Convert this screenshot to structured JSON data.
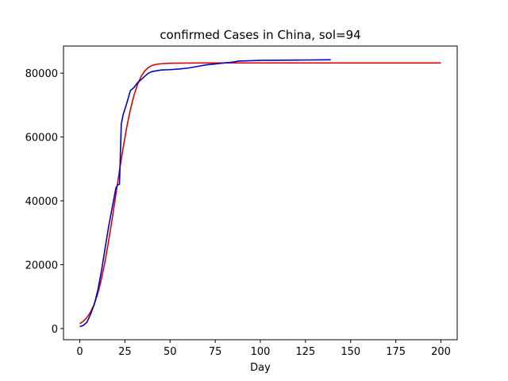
{
  "chart_data": {
    "type": "line",
    "title": "confirmed Cases in China, sol=94",
    "xlabel": "Day",
    "ylabel": "",
    "xlim": [
      -9,
      209
    ],
    "ylim": [
      -3500,
      88500
    ],
    "xticks": [
      0,
      25,
      50,
      75,
      100,
      125,
      150,
      175,
      200
    ],
    "yticks": [
      0,
      20000,
      40000,
      60000,
      80000
    ],
    "grid": false,
    "legend": "none",
    "series": [
      {
        "color": "#dd0000",
        "x": [
          0,
          2,
          4,
          6,
          8,
          10,
          12,
          14,
          16,
          18,
          20,
          22,
          24,
          26,
          28,
          30,
          32,
          34,
          36,
          38,
          40,
          42,
          44,
          46,
          48,
          50,
          55,
          60,
          70,
          80,
          100,
          125,
          150,
          175,
          200
        ],
        "y": [
          1500,
          2300,
          3500,
          5200,
          7600,
          11000,
          15500,
          21000,
          27500,
          34500,
          42000,
          49500,
          56500,
          63000,
          68500,
          73000,
          76500,
          79000,
          80700,
          81800,
          82400,
          82700,
          82900,
          83000,
          83050,
          83100,
          83150,
          83180,
          83200,
          83200,
          83200,
          83200,
          83200,
          83200,
          83200
        ]
      },
      {
        "color": "#0000cc",
        "x": [
          0,
          2,
          4,
          6,
          8,
          10,
          12,
          14,
          16,
          18,
          20,
          21,
          22,
          23,
          24,
          26,
          28,
          30,
          32,
          34,
          36,
          38,
          40,
          45,
          50,
          55,
          60,
          65,
          70,
          75,
          80,
          85,
          88,
          100,
          120,
          139
        ],
        "y": [
          600,
          1000,
          2000,
          4500,
          7500,
          12000,
          18000,
          25000,
          32000,
          38000,
          44000,
          45000,
          45200,
          64000,
          67000,
          70500,
          74500,
          75500,
          77000,
          78000,
          79000,
          80000,
          80500,
          81000,
          81100,
          81300,
          81600,
          82100,
          82600,
          82900,
          83200,
          83500,
          83800,
          84000,
          84100,
          84200
        ]
      }
    ]
  }
}
